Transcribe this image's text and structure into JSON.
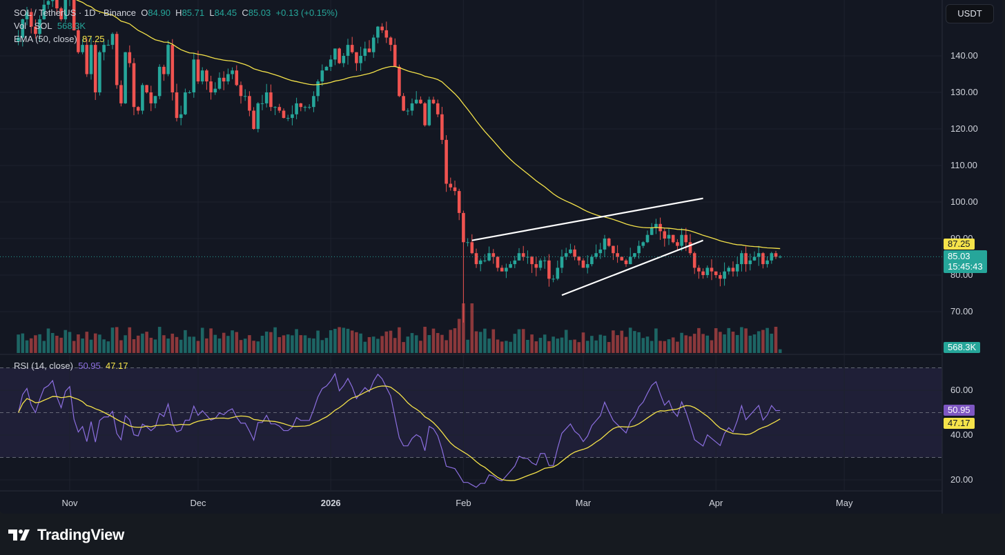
{
  "legend": {
    "symbol": "SOL / TetherUS · 1D · Binance",
    "o_label": "O",
    "o": "84.90",
    "h_label": "H",
    "h": "85.71",
    "l_label": "L",
    "l": "84.45",
    "c_label": "C",
    "c": "85.03",
    "change": "+0.13 (+0.15%)",
    "vol_label": "Vol · SOL",
    "vol": "568.3K",
    "ema_label": "EMA (50, close)",
    "ema": "87.25",
    "rsi_label": "RSI (14, close)",
    "rsi": "50.95",
    "rsi_ma": "47.17"
  },
  "currency_button": "USDT",
  "tags": {
    "ema": "87.25",
    "price": "85.03",
    "countdown": "15:45:43",
    "volume": "568.3K",
    "rsi": "50.95",
    "rsi_ma": "47.17"
  },
  "colors": {
    "up": "#26a69a",
    "down": "#ef5350",
    "ema": "#f5e34a",
    "rsi": "#8c6fe0",
    "rsi_ma": "#f5e34a",
    "background": "#131722"
  },
  "brand": "TradingView",
  "chart_data": {
    "type": "candlestick",
    "price_axis_ticks": [
      140,
      130,
      120,
      110,
      100,
      90,
      80,
      70
    ],
    "price_axis_labels": [
      "140.00",
      "130.00",
      "120.00",
      "110.00",
      "100.00",
      "90.00",
      "80.00",
      "70.00"
    ],
    "rsi_axis_ticks": [
      60,
      40,
      20
    ],
    "rsi_axis_labels": [
      "60.00",
      "40.00",
      "20.00"
    ],
    "rsi_bands": [
      70,
      50,
      30
    ],
    "time_labels": [
      {
        "label": "Nov",
        "day": 12,
        "bold": false
      },
      {
        "label": "Dec",
        "day": 42,
        "bold": false
      },
      {
        "label": "2026",
        "day": 73,
        "bold": true
      },
      {
        "label": "Feb",
        "day": 104,
        "bold": false
      },
      {
        "label": "Mar",
        "day": 132,
        "bold": false
      },
      {
        "label": "Apr",
        "day": 163,
        "bold": false
      },
      {
        "label": "May",
        "day": 193,
        "bold": false
      }
    ],
    "closes": [
      145,
      150,
      152,
      148,
      146,
      150,
      154,
      155,
      157,
      153,
      150,
      156,
      158,
      147,
      141,
      143,
      135,
      143,
      130,
      141,
      143,
      143,
      146,
      132,
      127,
      141,
      138,
      126,
      125,
      132,
      130,
      127,
      129,
      137,
      135,
      143,
      130,
      123,
      124,
      130,
      130,
      139,
      133,
      136,
      133,
      130,
      131,
      134,
      133,
      135,
      136,
      132,
      129,
      129,
      125,
      120,
      127,
      127,
      130,
      126,
      126,
      125,
      123,
      123,
      124,
      127,
      126,
      126,
      126,
      129,
      133,
      136,
      137,
      139,
      142,
      138,
      140,
      143,
      141,
      138,
      140,
      142,
      141,
      145,
      148,
      147,
      145,
      143,
      137,
      129,
      125,
      125,
      127,
      128,
      127,
      121,
      128,
      127,
      124,
      117,
      105,
      104,
      103,
      97,
      89,
      89,
      86,
      83,
      84,
      84,
      86,
      85,
      82,
      81,
      82,
      83,
      84,
      86,
      85,
      85,
      83,
      82,
      84,
      84,
      79,
      79,
      82,
      85,
      86,
      87,
      85,
      84,
      82,
      83,
      85,
      86,
      87,
      90,
      88,
      86,
      85,
      84,
      83,
      85,
      86,
      88,
      89,
      91,
      93,
      94,
      92,
      90,
      91,
      89,
      88,
      91,
      89,
      86,
      82,
      81,
      80,
      82,
      81,
      80,
      79,
      81,
      82,
      81,
      83,
      86,
      83,
      84,
      85,
      86,
      83,
      84,
      86,
      85,
      85.03
    ],
    "volume_scale_note": "",
    "ema_last": 87.25,
    "last_close": 85.03,
    "rsi_last": 50.95,
    "rsi_ma_last": 47.17,
    "trendlines": [
      {
        "from": {
          "day": 106,
          "price": 89.5
        },
        "to": {
          "day": 160,
          "price": 101
        }
      },
      {
        "from": {
          "day": 127,
          "price": 74.5
        },
        "to": {
          "day": 160,
          "price": 89.5
        }
      }
    ]
  }
}
